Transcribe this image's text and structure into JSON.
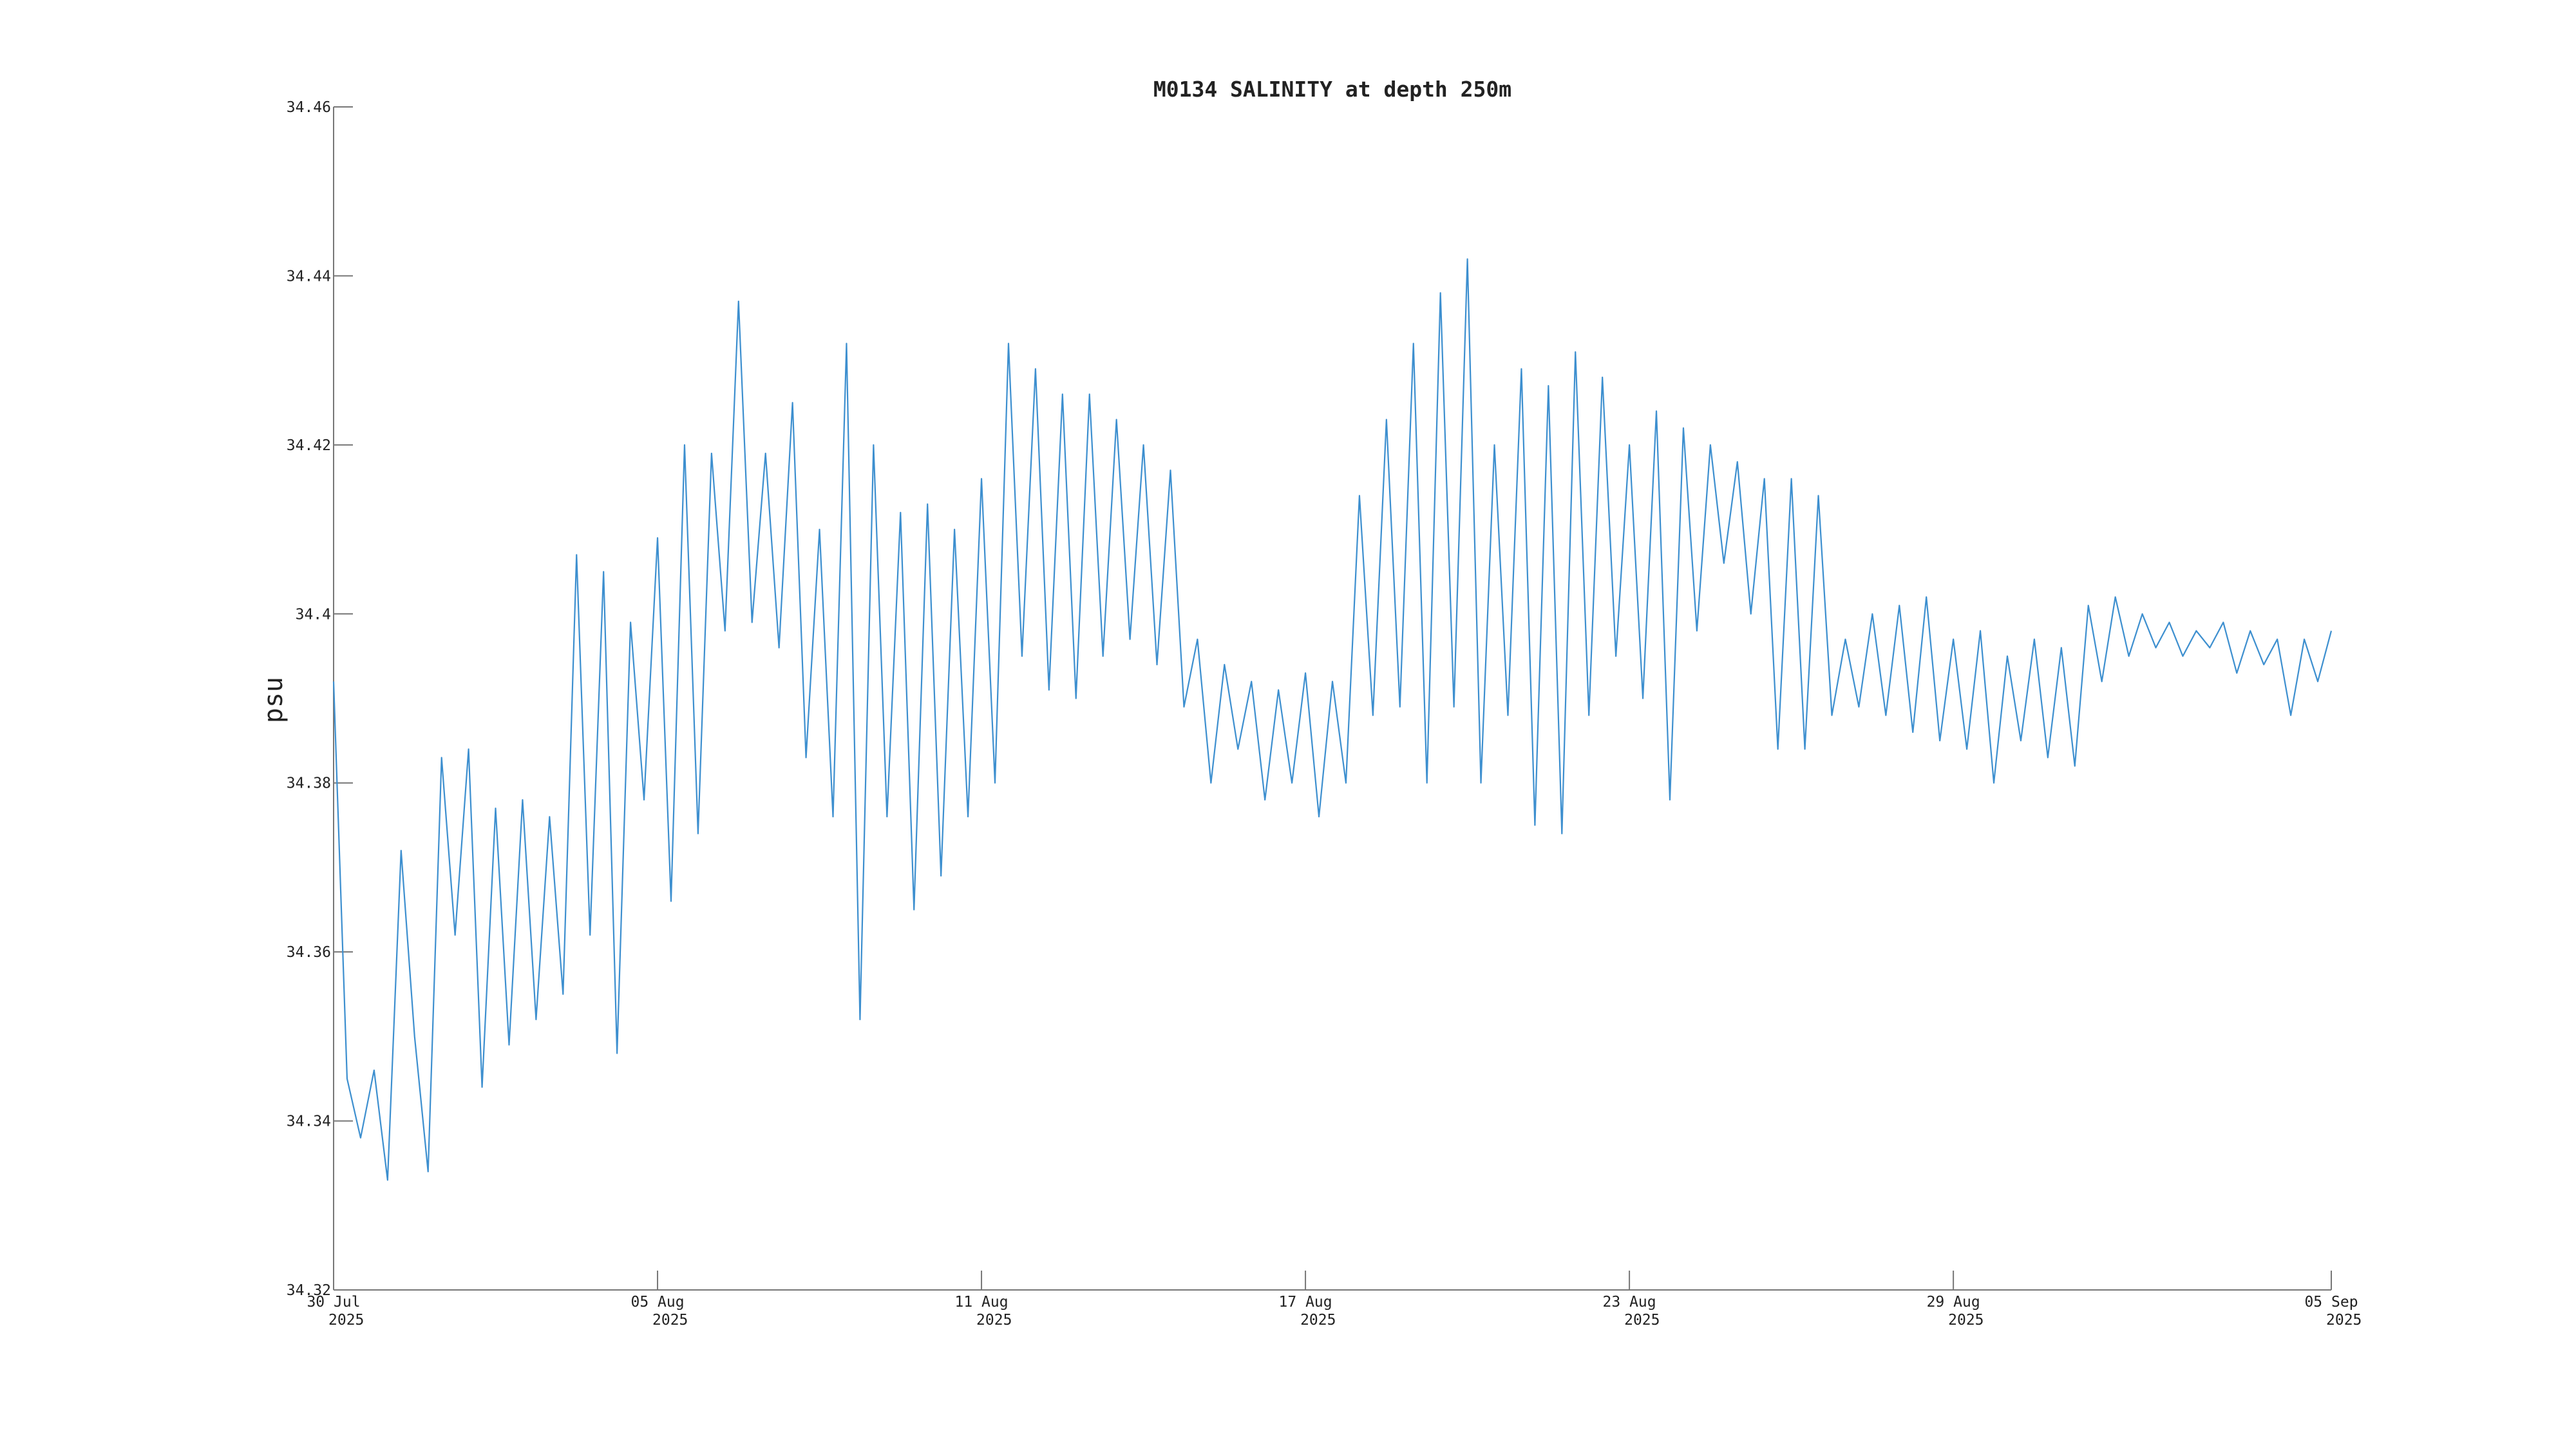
{
  "chart_data": {
    "type": "line",
    "title": "M0134 SALINITY at depth 250m",
    "y_label": "psu",
    "color": "#3d8fcf",
    "grid": false,
    "ylim": [
      34.32,
      34.46
    ],
    "yticks": [
      34.32,
      34.34,
      34.36,
      34.38,
      34.4,
      34.42,
      34.44,
      34.46
    ],
    "xlim": [
      "2025-07-30T00:00",
      "2025-09-05T00:00"
    ],
    "xticks": [
      {
        "value": "2025-07-30T00:00",
        "label": [
          "30 Jul",
          "2025"
        ]
      },
      {
        "value": "2025-08-05T00:00",
        "label": [
          "05 Aug",
          "2025"
        ]
      },
      {
        "value": "2025-08-11T00:00",
        "label": [
          "11 Aug",
          "2025"
        ]
      },
      {
        "value": "2025-08-17T00:00",
        "label": [
          "17 Aug",
          "2025"
        ]
      },
      {
        "value": "2025-08-23T00:00",
        "label": [
          "23 Aug",
          "2025"
        ]
      },
      {
        "value": "2025-08-29T00:00",
        "label": [
          "29 Aug",
          "2025"
        ]
      },
      {
        "value": "2025-09-05T00:00",
        "label": [
          "05 Sep",
          "2025"
        ]
      }
    ],
    "x": [
      "2025-07-30T00:00",
      "2025-07-30T06:00",
      "2025-07-30T12:00",
      "2025-07-30T18:00",
      "2025-07-31T00:00",
      "2025-07-31T06:00",
      "2025-07-31T12:00",
      "2025-07-31T18:00",
      "2025-08-01T00:00",
      "2025-08-01T06:00",
      "2025-08-01T12:00",
      "2025-08-01T18:00",
      "2025-08-02T00:00",
      "2025-08-02T06:00",
      "2025-08-02T12:00",
      "2025-08-02T18:00",
      "2025-08-03T00:00",
      "2025-08-03T06:00",
      "2025-08-03T12:00",
      "2025-08-03T18:00",
      "2025-08-04T00:00",
      "2025-08-04T06:00",
      "2025-08-04T12:00",
      "2025-08-04T18:00",
      "2025-08-05T00:00",
      "2025-08-05T06:00",
      "2025-08-05T12:00",
      "2025-08-05T18:00",
      "2025-08-06T00:00",
      "2025-08-06T06:00",
      "2025-08-06T12:00",
      "2025-08-06T18:00",
      "2025-08-07T00:00",
      "2025-08-07T06:00",
      "2025-08-07T12:00",
      "2025-08-07T18:00",
      "2025-08-08T00:00",
      "2025-08-08T06:00",
      "2025-08-08T12:00",
      "2025-08-08T18:00",
      "2025-08-09T00:00",
      "2025-08-09T06:00",
      "2025-08-09T12:00",
      "2025-08-09T18:00",
      "2025-08-10T00:00",
      "2025-08-10T06:00",
      "2025-08-10T12:00",
      "2025-08-10T18:00",
      "2025-08-11T00:00",
      "2025-08-11T06:00",
      "2025-08-11T12:00",
      "2025-08-11T18:00",
      "2025-08-12T00:00",
      "2025-08-12T06:00",
      "2025-08-12T12:00",
      "2025-08-12T18:00",
      "2025-08-13T00:00",
      "2025-08-13T06:00",
      "2025-08-13T12:00",
      "2025-08-13T18:00",
      "2025-08-14T00:00",
      "2025-08-14T06:00",
      "2025-08-14T12:00",
      "2025-08-14T18:00",
      "2025-08-15T00:00",
      "2025-08-15T06:00",
      "2025-08-15T12:00",
      "2025-08-15T18:00",
      "2025-08-16T00:00",
      "2025-08-16T06:00",
      "2025-08-16T12:00",
      "2025-08-16T18:00",
      "2025-08-17T00:00",
      "2025-08-17T06:00",
      "2025-08-17T12:00",
      "2025-08-17T18:00",
      "2025-08-18T00:00",
      "2025-08-18T06:00",
      "2025-08-18T12:00",
      "2025-08-18T18:00",
      "2025-08-19T00:00",
      "2025-08-19T06:00",
      "2025-08-19T12:00",
      "2025-08-19T18:00",
      "2025-08-20T00:00",
      "2025-08-20T06:00",
      "2025-08-20T12:00",
      "2025-08-20T18:00",
      "2025-08-21T00:00",
      "2025-08-21T06:00",
      "2025-08-21T12:00",
      "2025-08-21T18:00",
      "2025-08-22T00:00",
      "2025-08-22T06:00",
      "2025-08-22T12:00",
      "2025-08-22T18:00",
      "2025-08-23T00:00",
      "2025-08-23T06:00",
      "2025-08-23T12:00",
      "2025-08-23T18:00",
      "2025-08-24T00:00",
      "2025-08-24T06:00",
      "2025-08-24T12:00",
      "2025-08-24T18:00",
      "2025-08-25T00:00",
      "2025-08-25T06:00",
      "2025-08-25T12:00",
      "2025-08-25T18:00",
      "2025-08-26T00:00",
      "2025-08-26T06:00",
      "2025-08-26T12:00",
      "2025-08-26T18:00",
      "2025-08-27T00:00",
      "2025-08-27T06:00",
      "2025-08-27T12:00",
      "2025-08-27T18:00",
      "2025-08-28T00:00",
      "2025-08-28T06:00",
      "2025-08-28T12:00",
      "2025-08-28T18:00",
      "2025-08-29T00:00",
      "2025-08-29T06:00",
      "2025-08-29T12:00",
      "2025-08-29T18:00",
      "2025-08-30T00:00",
      "2025-08-30T06:00",
      "2025-08-30T12:00",
      "2025-08-30T18:00",
      "2025-08-31T00:00",
      "2025-08-31T06:00",
      "2025-08-31T12:00",
      "2025-08-31T18:00",
      "2025-09-01T00:00",
      "2025-09-01T06:00",
      "2025-09-01T12:00",
      "2025-09-01T18:00",
      "2025-09-02T00:00",
      "2025-09-02T06:00",
      "2025-09-02T12:00",
      "2025-09-02T18:00",
      "2025-09-03T00:00",
      "2025-09-03T06:00",
      "2025-09-03T12:00",
      "2025-09-03T18:00",
      "2025-09-04T00:00",
      "2025-09-04T06:00",
      "2025-09-04T12:00",
      "2025-09-04T18:00",
      "2025-09-05T00:00"
    ],
    "values": [
      34.392,
      34.345,
      34.338,
      34.346,
      34.333,
      34.372,
      34.35,
      34.334,
      34.383,
      34.362,
      34.384,
      34.344,
      34.377,
      34.349,
      34.378,
      34.352,
      34.376,
      34.355,
      34.407,
      34.362,
      34.405,
      34.348,
      34.399,
      34.378,
      34.409,
      34.366,
      34.42,
      34.374,
      34.419,
      34.398,
      34.437,
      34.399,
      34.419,
      34.396,
      34.425,
      34.383,
      34.41,
      34.376,
      34.432,
      34.352,
      34.42,
      34.376,
      34.412,
      34.365,
      34.413,
      34.369,
      34.41,
      34.376,
      34.416,
      34.38,
      34.432,
      34.395,
      34.429,
      34.391,
      34.426,
      34.39,
      34.426,
      34.395,
      34.423,
      34.397,
      34.42,
      34.394,
      34.417,
      34.389,
      34.397,
      34.38,
      34.394,
      34.384,
      34.392,
      34.378,
      34.391,
      34.38,
      34.393,
      34.376,
      34.392,
      34.38,
      34.414,
      34.388,
      34.423,
      34.389,
      34.432,
      34.38,
      34.438,
      34.389,
      34.442,
      34.38,
      34.42,
      34.388,
      34.429,
      34.375,
      34.427,
      34.374,
      34.431,
      34.388,
      34.428,
      34.395,
      34.42,
      34.39,
      34.424,
      34.378,
      34.422,
      34.398,
      34.42,
      34.406,
      34.418,
      34.4,
      34.416,
      34.384,
      34.416,
      34.384,
      34.414,
      34.388,
      34.397,
      34.389,
      34.4,
      34.388,
      34.401,
      34.386,
      34.402,
      34.385,
      34.397,
      34.384,
      34.398,
      34.38,
      34.395,
      34.385,
      34.397,
      34.383,
      34.396,
      34.382,
      34.401,
      34.392,
      34.402,
      34.395,
      34.4,
      34.396,
      34.399,
      34.395,
      34.398,
      34.396,
      34.399,
      34.393,
      34.398,
      34.394,
      34.397,
      34.388,
      34.397,
      34.392,
      34.398
    ]
  }
}
